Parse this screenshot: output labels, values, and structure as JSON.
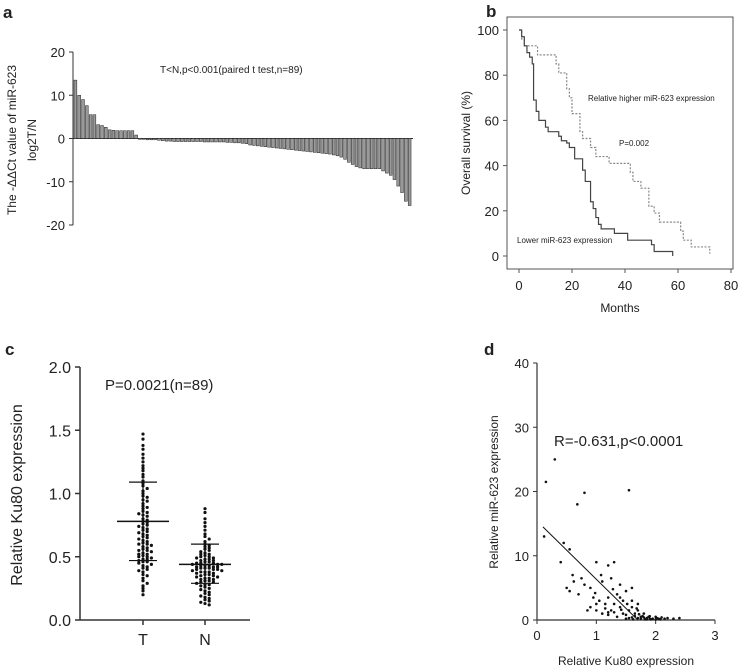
{
  "chart_data": [
    {
      "panel": "a",
      "type": "bar",
      "ylabel": "The -ΔΔCt value of miR-623",
      "ylabel2": "log2T/N",
      "annotation": "T<N,p<0.001(paired t test,n=89)",
      "ylim": [
        -20,
        20
      ],
      "yticks": [
        "20",
        "10",
        "0",
        "-10",
        "-20"
      ],
      "ytick_values": [
        20,
        10,
        0,
        -10,
        -20
      ],
      "values": [
        13.5,
        10,
        9,
        7.6,
        5.5,
        5.5,
        3.2,
        3,
        2.6,
        2,
        1.9,
        1.8,
        1.8,
        1.8,
        1.8,
        1.8,
        0.8,
        -0.2,
        -0.2,
        -0.3,
        -0.3,
        -0.3,
        -0.4,
        -0.5,
        -0.6,
        -0.6,
        -0.7,
        -0.7,
        -0.7,
        -0.7,
        -0.7,
        -0.7,
        -0.7,
        -0.7,
        -0.8,
        -0.8,
        -0.8,
        -0.8,
        -0.8,
        -0.8,
        -0.9,
        -0.9,
        -1,
        -1,
        -1.1,
        -1.2,
        -1.5,
        -1.6,
        -1.7,
        -1.8,
        -1.9,
        -2,
        -2.1,
        -2.2,
        -2.3,
        -2.4,
        -2.5,
        -2.6,
        -2.7,
        -2.8,
        -2.9,
        -3,
        -3.1,
        -3.2,
        -3.3,
        -3.4,
        -3.5,
        -3.6,
        -3.8,
        -4,
        -4.3,
        -4.8,
        -5.5,
        -6,
        -6.5,
        -6.8,
        -7,
        -7,
        -7,
        -7,
        -7,
        -7.5,
        -8,
        -8.5,
        -9.5,
        -11,
        -12.5,
        -14.5,
        -15.5
      ]
    },
    {
      "panel": "b",
      "type": "line",
      "xlabel": "Months",
      "ylabel": "Overall survival (%)",
      "xlim": [
        0,
        80
      ],
      "ylim": [
        0,
        100
      ],
      "xticks": [
        "0",
        "20",
        "40",
        "60",
        "80"
      ],
      "xtick_values": [
        0,
        20,
        40,
        60,
        80
      ],
      "yticks": [
        "100",
        "80",
        "60",
        "40",
        "20",
        "0"
      ],
      "ytick_values": [
        100,
        80,
        60,
        40,
        20,
        0
      ],
      "annotation": "P=0.002",
      "series": [
        {
          "name": "Relative higher miR-623 expression",
          "style": "dotted",
          "points": [
            [
              0,
              100
            ],
            [
              1,
              96
            ],
            [
              2,
              93
            ],
            [
              7,
              89
            ],
            [
              14,
              85
            ],
            [
              15,
              81
            ],
            [
              18,
              74
            ],
            [
              19,
              70
            ],
            [
              20,
              63
            ],
            [
              23,
              55
            ],
            [
              24,
              52
            ],
            [
              27,
              48
            ],
            [
              29,
              44
            ],
            [
              34,
              41
            ],
            [
              42,
              37
            ],
            [
              43,
              33
            ],
            [
              46,
              30
            ],
            [
              49,
              22
            ],
            [
              51,
              19
            ],
            [
              53,
              15
            ],
            [
              61,
              11
            ],
            [
              62,
              7
            ],
            [
              65,
              4
            ],
            [
              72,
              1
            ]
          ]
        },
        {
          "name": "Lower miR-623 expression",
          "style": "solid",
          "points": [
            [
              0,
              100
            ],
            [
              1,
              97
            ],
            [
              2,
              93
            ],
            [
              3,
              90
            ],
            [
              4,
              88
            ],
            [
              5,
              85
            ],
            [
              5.5,
              69
            ],
            [
              6.5,
              64
            ],
            [
              7.5,
              60
            ],
            [
              10,
              57
            ],
            [
              11,
              55
            ],
            [
              15,
              53
            ],
            [
              16,
              51
            ],
            [
              18,
              50
            ],
            [
              19,
              48
            ],
            [
              21,
              43
            ],
            [
              24,
              38
            ],
            [
              25,
              33
            ],
            [
              27,
              24
            ],
            [
              28,
              21
            ],
            [
              29,
              17
            ],
            [
              30,
              14
            ],
            [
              31,
              12
            ],
            [
              36,
              10
            ],
            [
              41,
              7
            ],
            [
              50,
              5
            ],
            [
              51,
              2
            ],
            [
              58,
              0
            ]
          ]
        }
      ]
    },
    {
      "panel": "c",
      "type": "scatter",
      "ylabel": "Relative Ku80 expression",
      "annotation": "P=0.0021(n=89)",
      "ylim": [
        0,
        2.0
      ],
      "yticks": [
        "2.0",
        "1.5",
        "1.0",
        "0.5",
        "0.0"
      ],
      "ytick_values": [
        2.0,
        1.5,
        1.0,
        0.5,
        0.0
      ],
      "categories": [
        "T",
        "N"
      ],
      "series": [
        {
          "name": "T",
          "mean": 0.78,
          "sd_low": 0.47,
          "sd_high": 1.09,
          "values": [
            1.47,
            1.43,
            1.38,
            1.35,
            1.31,
            1.28,
            1.25,
            1.22,
            1.2,
            1.18,
            1.15,
            1.13,
            1.1,
            1.08,
            1.06,
            1.04,
            1.02,
            1.0,
            0.98,
            0.97,
            0.95,
            0.94,
            0.92,
            0.9,
            0.89,
            0.88,
            0.86,
            0.85,
            0.84,
            0.83,
            0.82,
            0.8,
            0.79,
            0.78,
            0.77,
            0.76,
            0.75,
            0.74,
            0.73,
            0.72,
            0.71,
            0.7,
            0.69,
            0.68,
            0.67,
            0.66,
            0.65,
            0.64,
            0.63,
            0.62,
            0.61,
            0.6,
            0.6,
            0.59,
            0.58,
            0.57,
            0.56,
            0.55,
            0.55,
            0.54,
            0.53,
            0.52,
            0.52,
            0.51,
            0.5,
            0.5,
            0.49,
            0.48,
            0.48,
            0.47,
            0.46,
            0.46,
            0.45,
            0.44,
            0.43,
            0.42,
            0.41,
            0.4,
            0.39,
            0.38,
            0.36,
            0.35,
            0.33,
            0.31,
            0.29,
            0.27,
            0.25,
            0.23,
            0.2
          ]
        },
        {
          "name": "N",
          "mean": 0.44,
          "sd_low": 0.29,
          "sd_high": 0.6,
          "values": [
            0.88,
            0.85,
            0.8,
            0.77,
            0.74,
            0.71,
            0.68,
            0.66,
            0.64,
            0.62,
            0.6,
            0.59,
            0.58,
            0.57,
            0.56,
            0.55,
            0.54,
            0.53,
            0.52,
            0.52,
            0.51,
            0.5,
            0.5,
            0.49,
            0.49,
            0.48,
            0.48,
            0.47,
            0.47,
            0.46,
            0.46,
            0.45,
            0.45,
            0.45,
            0.44,
            0.44,
            0.44,
            0.43,
            0.43,
            0.43,
            0.42,
            0.42,
            0.42,
            0.41,
            0.41,
            0.41,
            0.4,
            0.4,
            0.4,
            0.39,
            0.39,
            0.38,
            0.38,
            0.38,
            0.37,
            0.37,
            0.36,
            0.36,
            0.35,
            0.35,
            0.34,
            0.34,
            0.33,
            0.33,
            0.32,
            0.32,
            0.31,
            0.31,
            0.3,
            0.3,
            0.29,
            0.28,
            0.28,
            0.27,
            0.26,
            0.25,
            0.24,
            0.23,
            0.22,
            0.21,
            0.2,
            0.19,
            0.18,
            0.17,
            0.16,
            0.15,
            0.14,
            0.13,
            0.12
          ]
        }
      ]
    },
    {
      "panel": "d",
      "type": "scatter",
      "xlabel": "Relative Ku80 expression",
      "ylabel": "Relative miR-623 expression",
      "annotation": "R=-0.631,p<0.0001",
      "xlim": [
        0,
        3
      ],
      "ylim": [
        0,
        40
      ],
      "xticks": [
        "0",
        "1",
        "2",
        "3"
      ],
      "xtick_values": [
        0,
        1,
        2,
        3
      ],
      "yticks": [
        "40",
        "30",
        "20",
        "10",
        "0"
      ],
      "ytick_values": [
        40,
        30,
        20,
        10,
        0
      ],
      "fit_line": [
        [
          0.1,
          14.5
        ],
        [
          1.7,
          0
        ]
      ],
      "points": [
        [
          0.12,
          13
        ],
        [
          0.15,
          21.5
        ],
        [
          0.3,
          25
        ],
        [
          0.45,
          12
        ],
        [
          0.55,
          11
        ],
        [
          0.68,
          18
        ],
        [
          0.8,
          19.8
        ],
        [
          1.55,
          20.2
        ],
        [
          0.6,
          7
        ],
        [
          0.62,
          6
        ],
        [
          0.75,
          6.5
        ],
        [
          0.8,
          5.5
        ],
        [
          0.9,
          5
        ],
        [
          0.7,
          4
        ],
        [
          0.55,
          4.5
        ],
        [
          1.0,
          9
        ],
        [
          1.2,
          8.5
        ],
        [
          1.3,
          9
        ],
        [
          1.1,
          6
        ],
        [
          1.25,
          6.5
        ],
        [
          1.4,
          5.5
        ],
        [
          1.35,
          4
        ],
        [
          1.5,
          4.5
        ],
        [
          1.6,
          3
        ],
        [
          0.95,
          3.5
        ],
        [
          1.05,
          3
        ],
        [
          1.15,
          2.5
        ],
        [
          1.2,
          3.5
        ],
        [
          1.3,
          2.5
        ],
        [
          1.4,
          2
        ],
        [
          1.45,
          3
        ],
        [
          1.55,
          1.5
        ],
        [
          1.6,
          2
        ],
        [
          1.65,
          1
        ],
        [
          1.7,
          1.5
        ],
        [
          1.75,
          0.5
        ],
        [
          1.8,
          1
        ],
        [
          1.85,
          0.3
        ],
        [
          1.9,
          0.6
        ],
        [
          1.95,
          0.2
        ],
        [
          2.0,
          0.5
        ],
        [
          2.05,
          0.2
        ],
        [
          2.1,
          0.4
        ],
        [
          2.2,
          0.3
        ],
        [
          2.3,
          0.2
        ],
        [
          2.4,
          0.3
        ],
        [
          1.0,
          1.5
        ],
        [
          1.1,
          1
        ],
        [
          1.2,
          0.8
        ],
        [
          1.25,
          1.5
        ],
        [
          1.35,
          0.5
        ],
        [
          1.5,
          0.8
        ],
        [
          1.6,
          0.4
        ],
        [
          1.7,
          0.3
        ],
        [
          1.75,
          0.2
        ],
        [
          1.8,
          0.4
        ],
        [
          1.85,
          0.1
        ],
        [
          1.9,
          0.2
        ],
        [
          1.65,
          0.6
        ],
        [
          1.55,
          0.3
        ],
        [
          0.9,
          2
        ],
        [
          0.85,
          1.5
        ],
        [
          1.0,
          2.5
        ],
        [
          1.15,
          1.8
        ],
        [
          1.3,
          1.2
        ],
        [
          1.45,
          1
        ],
        [
          1.5,
          0.2
        ],
        [
          1.62,
          0.1
        ],
        [
          1.72,
          0.9
        ],
        [
          1.78,
          0.6
        ],
        [
          1.82,
          0.1
        ],
        [
          1.88,
          0.5
        ],
        [
          1.92,
          0.1
        ],
        [
          2.0,
          0.1
        ],
        [
          2.02,
          0.3
        ],
        [
          2.08,
          0.1
        ],
        [
          2.15,
          0.2
        ],
        [
          1.4,
          3.5
        ],
        [
          1.28,
          4.8
        ],
        [
          0.98,
          4.2
        ],
        [
          1.08,
          7
        ],
        [
          0.5,
          5
        ],
        [
          0.4,
          9
        ],
        [
          1.6,
          5
        ],
        [
          1.7,
          2.5
        ],
        [
          1.2,
          1.2
        ],
        [
          1.68,
          1.8
        ],
        [
          1.52,
          2.5
        ],
        [
          1.42,
          1.6
        ]
      ]
    }
  ],
  "panels": {
    "a": "a",
    "b": "b",
    "c": "c",
    "d": "d"
  }
}
